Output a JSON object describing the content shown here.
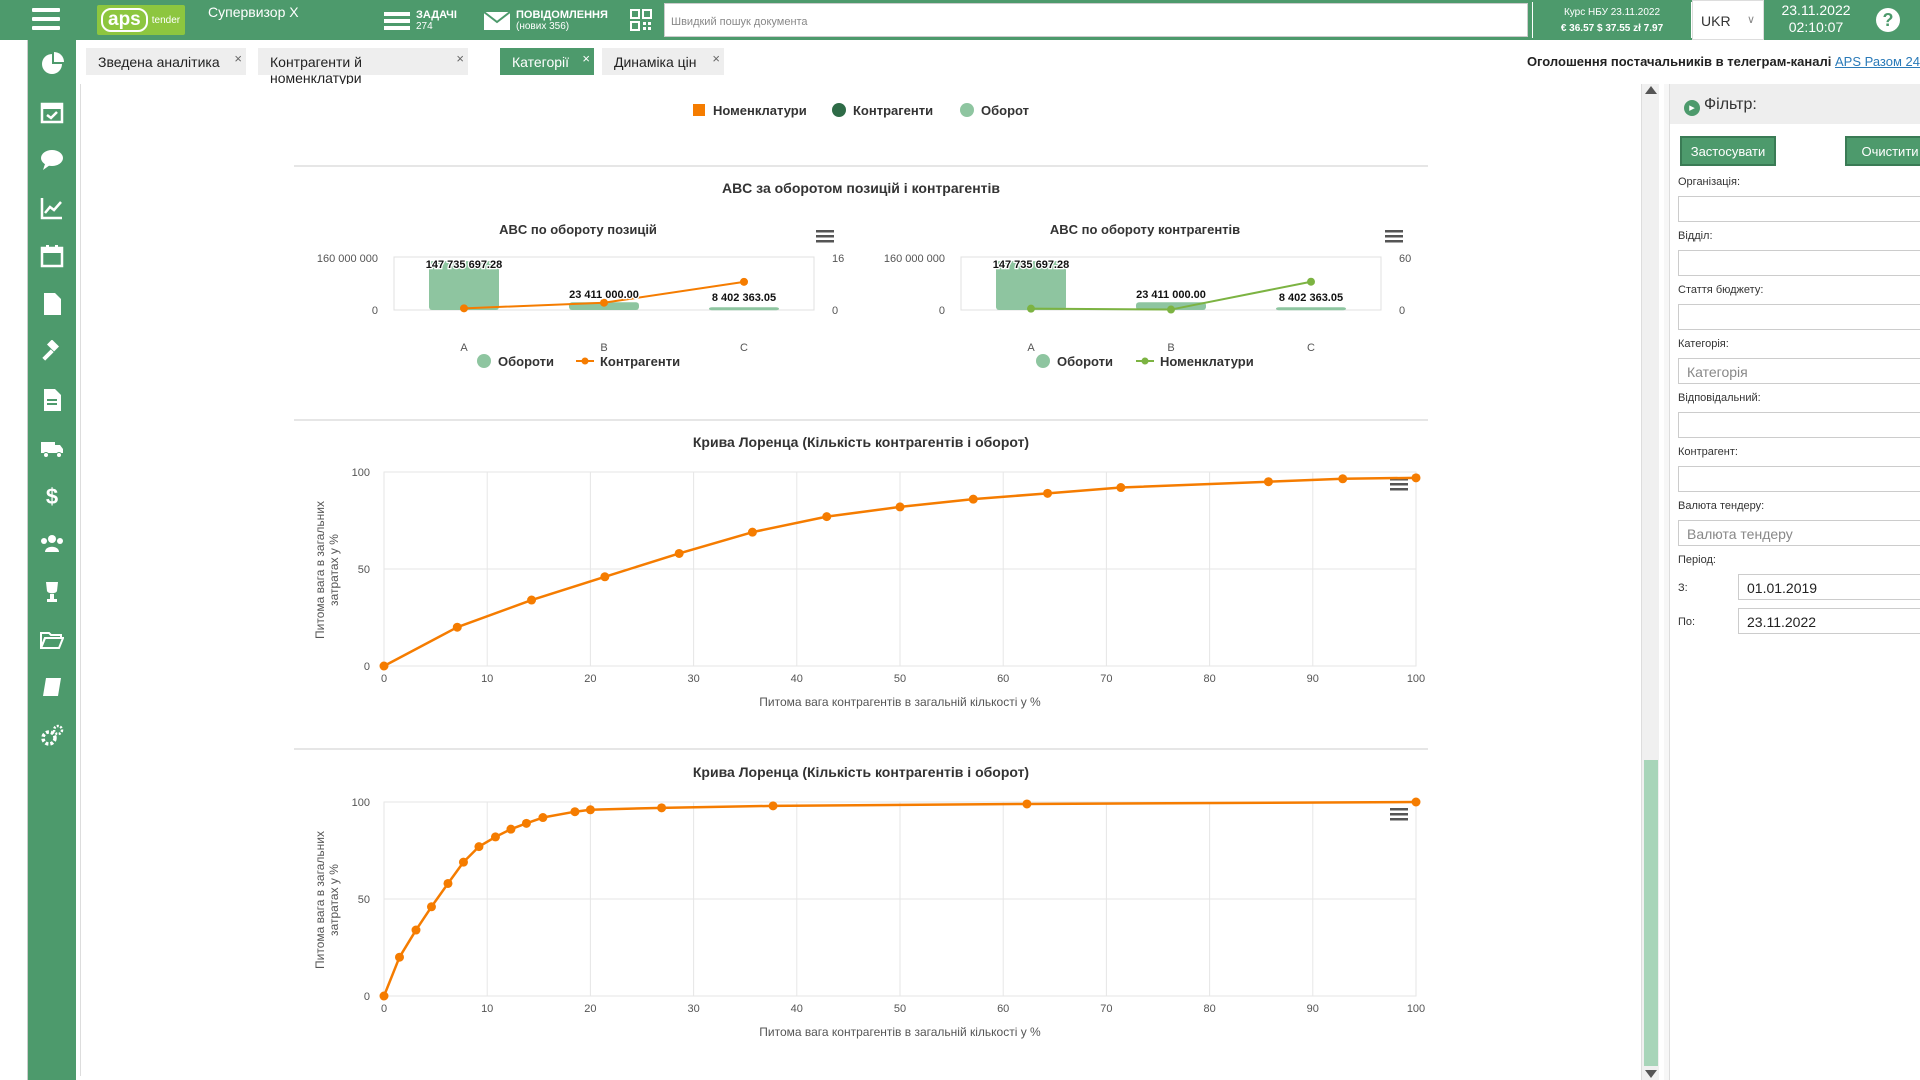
{
  "topbar": {
    "supervisor": "Супервизор Х",
    "tasks_label": "ЗАДАЧІ",
    "tasks_count": "274",
    "messages_label": "ПОВІДОМЛЕННЯ",
    "messages_sub": "(нових 356)",
    "search_placeholder": "Швидкий пошук документа",
    "rate_title": "Курс НБУ 23.11.2022",
    "rate_values": "€ 36.57  $ 37.55  zł 7.97",
    "lang": "UKR",
    "date": "23.11.2022",
    "time": "02:10:07",
    "help": "?"
  },
  "tabs": [
    {
      "label": "Зведена аналітика",
      "active": false
    },
    {
      "label": "Контрагенти й номенклатури",
      "active": false
    },
    {
      "label": "Категорії",
      "active": true
    },
    {
      "label": "Динаміка цін",
      "active": false
    }
  ],
  "announcement": {
    "text": "Оголошення постачальників в телеграм-каналі",
    "link": "APS Разом 24"
  },
  "top_legend": [
    "Номенклатури",
    "Контрагенти",
    "Оборот"
  ],
  "colors": {
    "green": "#4d9a6c",
    "orange": "#f57c00",
    "bar": "#8ec5a0",
    "lime": "#7cb342",
    "dark_green": "#2e6b47"
  },
  "abc_section_title": "ABC за оборотом позицій і контрагентів",
  "chart_data": [
    {
      "type": "bar",
      "title": "ABC по обороту позицій",
      "categories": [
        "A",
        "B",
        "C"
      ],
      "series": [
        {
          "name": "Обороти",
          "values": [
            147735697.28,
            23411000.0,
            8402363.05
          ],
          "labels": [
            "147 735 697.28",
            "23 411 000.00",
            "8 402 363.05"
          ]
        },
        {
          "name": "Контрагенти",
          "type": "line",
          "values": [
            0.5,
            2.2,
            8.5
          ]
        }
      ],
      "ylim": [
        0,
        160000000
      ],
      "y_ticks": [
        "160 000 000",
        "0"
      ],
      "y2lim": [
        0,
        16
      ],
      "y2_ticks": [
        "16",
        "0"
      ]
    },
    {
      "type": "bar",
      "title": "ABC по обороту контрагентів",
      "categories": [
        "A",
        "B",
        "C"
      ],
      "series": [
        {
          "name": "Обороти",
          "values": [
            147735697.28,
            23411000.0,
            8402363.05
          ],
          "labels": [
            "147 735 697.28",
            "23 411 000.00",
            "8 402 363.05"
          ]
        },
        {
          "name": "Номенклатури",
          "type": "line",
          "values": [
            1.5,
            0.5,
            32
          ]
        }
      ],
      "ylim": [
        0,
        160000000
      ],
      "y_ticks": [
        "160 000 000",
        "0"
      ],
      "y2lim": [
        0,
        60
      ],
      "y2_ticks": [
        "60",
        "0"
      ]
    },
    {
      "type": "line",
      "title": "Крива Лоренца (Кількість контрагентів і оборот)",
      "xlabel": "Питома вага контрагентів в загальній кількості у %",
      "ylabel": "Питома вага в загальних затратах у %",
      "xlim": [
        0,
        100
      ],
      "ylim": [
        0,
        100
      ],
      "x_ticks": [
        0,
        10,
        20,
        30,
        40,
        50,
        60,
        70,
        80,
        90,
        100
      ],
      "y_ticks": [
        0,
        50,
        100
      ],
      "x": [
        0,
        7.1,
        14.3,
        21.4,
        28.6,
        35.7,
        42.9,
        50,
        57.1,
        64.3,
        71.4,
        85.7,
        92.9,
        100
      ],
      "y": [
        0,
        20,
        34,
        46,
        58,
        69,
        77,
        82,
        86,
        89,
        92,
        95,
        96.5,
        97
      ]
    },
    {
      "type": "line",
      "title": "Крива Лоренца (Кількість контрагентів і оборот)",
      "xlabel": "Питома вага контрагентів в загальній кількості у %",
      "ylabel": "Питома вага в загальних затратах у %",
      "xlim": [
        0,
        100
      ],
      "ylim": [
        0,
        100
      ],
      "x_ticks": [
        0,
        10,
        20,
        30,
        40,
        50,
        60,
        70,
        80,
        90,
        100
      ],
      "y_ticks": [
        0,
        50,
        100
      ],
      "x": [
        0,
        1.5,
        3.1,
        4.6,
        6.2,
        7.7,
        9.2,
        10.8,
        12.3,
        13.8,
        15.4,
        18.5,
        20,
        26.9,
        37.7,
        62.3,
        100
      ],
      "y": [
        0,
        20,
        34,
        46,
        58,
        69,
        77,
        82,
        86,
        89,
        92,
        95,
        96,
        97,
        98,
        99,
        100
      ]
    }
  ],
  "filter": {
    "title": "Фільтр:",
    "apply": "Застосувати",
    "clear": "Очистити",
    "organization": "Організація:",
    "department": "Відділ:",
    "budget_item": "Стаття бюджету:",
    "category": "Категорія:",
    "category_placeholder": "Категорія",
    "responsible": "Відповідальний:",
    "counterparty": "Контрагент:",
    "currency": "Валюта тендеру:",
    "currency_placeholder": "Валюта тендеру",
    "period": "Період:",
    "from_label": "З:",
    "from_value": "01.01.2019",
    "to_label": "По:",
    "to_value": "23.11.2022"
  }
}
